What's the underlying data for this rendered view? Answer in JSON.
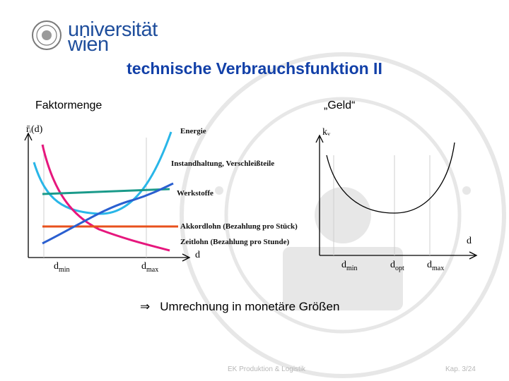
{
  "logo": {
    "line1": "universität",
    "line2": "wien"
  },
  "slide": {
    "title": "technische Verbrauchsfunktion II",
    "left_label": "Faktormenge",
    "right_label": "„Geld“",
    "bullet_symbol": "⇒",
    "bullet_text": "Umrechnung in monetäre Größen"
  },
  "left_chart": {
    "y_axis_label": "r̄ᵢ(d)",
    "x_axis_label": "d",
    "x_ticks": [
      "d_min",
      "d_max"
    ],
    "curve_labels": [
      "Energie",
      "Instandhaltung, Verschleißteile",
      "Werkstoffe",
      "Akkordlohn (Bezahlung pro Stück)",
      "Zeitlohn (Bezahlung pro Stunde)"
    ],
    "colors": {
      "energie": "#29b6e8",
      "instandhaltung": "#e6177d",
      "werkstoffe": "#1a9a8a",
      "akkordlohn": "#e8501c",
      "zeitlohn": "#2a5fd0"
    }
  },
  "right_chart": {
    "y_axis_label": "kᵥ",
    "x_axis_label": "d",
    "x_ticks": [
      "d_min",
      "d_opt",
      "d_max"
    ]
  },
  "footer": {
    "center": "EK Produktion & Logistik",
    "page": "Kap. 3/24"
  }
}
